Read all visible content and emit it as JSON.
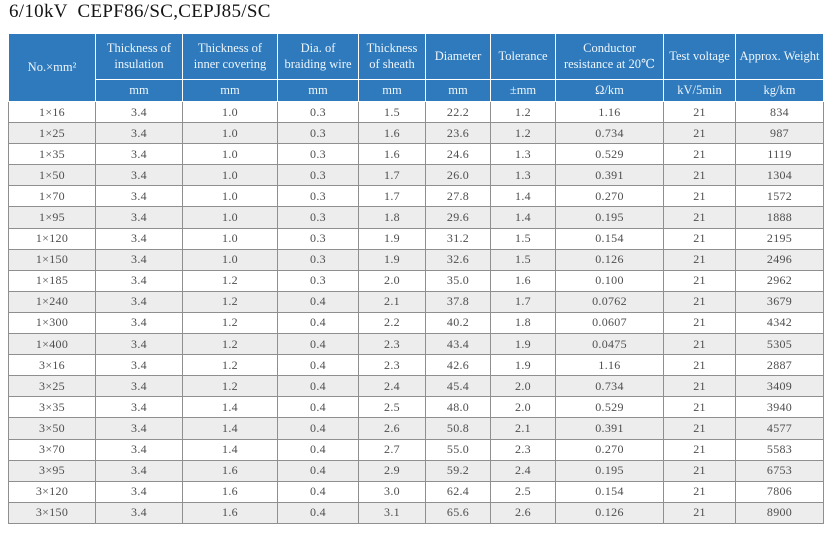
{
  "title": "6/10kV  CEPF86/SC,CEPJ85/SC",
  "table": {
    "columns": [
      {
        "label": "No.×mm²",
        "unit": ""
      },
      {
        "label": "Thickness of insulation",
        "unit": "mm"
      },
      {
        "label": "Thickness of inner covering",
        "unit": "mm"
      },
      {
        "label": "Dia. of braiding wire",
        "unit": "mm"
      },
      {
        "label": "Thickness of sheath",
        "unit": "mm"
      },
      {
        "label": "Diameter",
        "unit": "mm"
      },
      {
        "label": "Tolerance",
        "unit": "±mm"
      },
      {
        "label": "Conductor resistance at 20℃",
        "unit": "Ω/km"
      },
      {
        "label": "Test voltage",
        "unit": "kV/5min"
      },
      {
        "label": "Approx. Weight",
        "unit": "kg/km"
      }
    ],
    "rows": [
      [
        "1×16",
        "3.4",
        "1.0",
        "0.3",
        "1.5",
        "22.2",
        "1.2",
        "1.16",
        "21",
        "834"
      ],
      [
        "1×25",
        "3.4",
        "1.0",
        "0.3",
        "1.6",
        "23.6",
        "1.2",
        "0.734",
        "21",
        "987"
      ],
      [
        "1×35",
        "3.4",
        "1.0",
        "0.3",
        "1.6",
        "24.6",
        "1.3",
        "0.529",
        "21",
        "1119"
      ],
      [
        "1×50",
        "3.4",
        "1.0",
        "0.3",
        "1.7",
        "26.0",
        "1.3",
        "0.391",
        "21",
        "1304"
      ],
      [
        "1×70",
        "3.4",
        "1.0",
        "0.3",
        "1.7",
        "27.8",
        "1.4",
        "0.270",
        "21",
        "1572"
      ],
      [
        "1×95",
        "3.4",
        "1.0",
        "0.3",
        "1.8",
        "29.6",
        "1.4",
        "0.195",
        "21",
        "1888"
      ],
      [
        "1×120",
        "3.4",
        "1.0",
        "0.3",
        "1.9",
        "31.2",
        "1.5",
        "0.154",
        "21",
        "2195"
      ],
      [
        "1×150",
        "3.4",
        "1.0",
        "0.3",
        "1.9",
        "32.6",
        "1.5",
        "0.126",
        "21",
        "2496"
      ],
      [
        "1×185",
        "3.4",
        "1.2",
        "0.3",
        "2.0",
        "35.0",
        "1.6",
        "0.100",
        "21",
        "2962"
      ],
      [
        "1×240",
        "3.4",
        "1.2",
        "0.4",
        "2.1",
        "37.8",
        "1.7",
        "0.0762",
        "21",
        "3679"
      ],
      [
        "1×300",
        "3.4",
        "1.2",
        "0.4",
        "2.2",
        "40.2",
        "1.8",
        "0.0607",
        "21",
        "4342"
      ],
      [
        "1×400",
        "3.4",
        "1.2",
        "0.4",
        "2.3",
        "43.4",
        "1.9",
        "0.0475",
        "21",
        "5305"
      ],
      [
        "3×16",
        "3.4",
        "1.2",
        "0.4",
        "2.3",
        "42.6",
        "1.9",
        "1.16",
        "21",
        "2887"
      ],
      [
        "3×25",
        "3.4",
        "1.2",
        "0.4",
        "2.4",
        "45.4",
        "2.0",
        "0.734",
        "21",
        "3409"
      ],
      [
        "3×35",
        "3.4",
        "1.4",
        "0.4",
        "2.5",
        "48.0",
        "2.0",
        "0.529",
        "21",
        "3940"
      ],
      [
        "3×50",
        "3.4",
        "1.4",
        "0.4",
        "2.6",
        "50.8",
        "2.1",
        "0.391",
        "21",
        "4577"
      ],
      [
        "3×70",
        "3.4",
        "1.4",
        "0.4",
        "2.7",
        "55.0",
        "2.3",
        "0.270",
        "21",
        "5583"
      ],
      [
        "3×95",
        "3.4",
        "1.6",
        "0.4",
        "2.9",
        "59.2",
        "2.4",
        "0.195",
        "21",
        "6753"
      ],
      [
        "3×120",
        "3.4",
        "1.6",
        "0.4",
        "3.0",
        "62.4",
        "2.5",
        "0.154",
        "21",
        "7806"
      ],
      [
        "3×150",
        "3.4",
        "1.6",
        "0.4",
        "3.1",
        "65.6",
        "2.6",
        "0.126",
        "21",
        "8900"
      ]
    ]
  },
  "colors": {
    "header_bg": "#2e7abc",
    "header_text": "#eef5fc",
    "row_stripe": "#ededed",
    "grid_line": "#8f8f8f",
    "data_text": "#4e4e4e"
  }
}
